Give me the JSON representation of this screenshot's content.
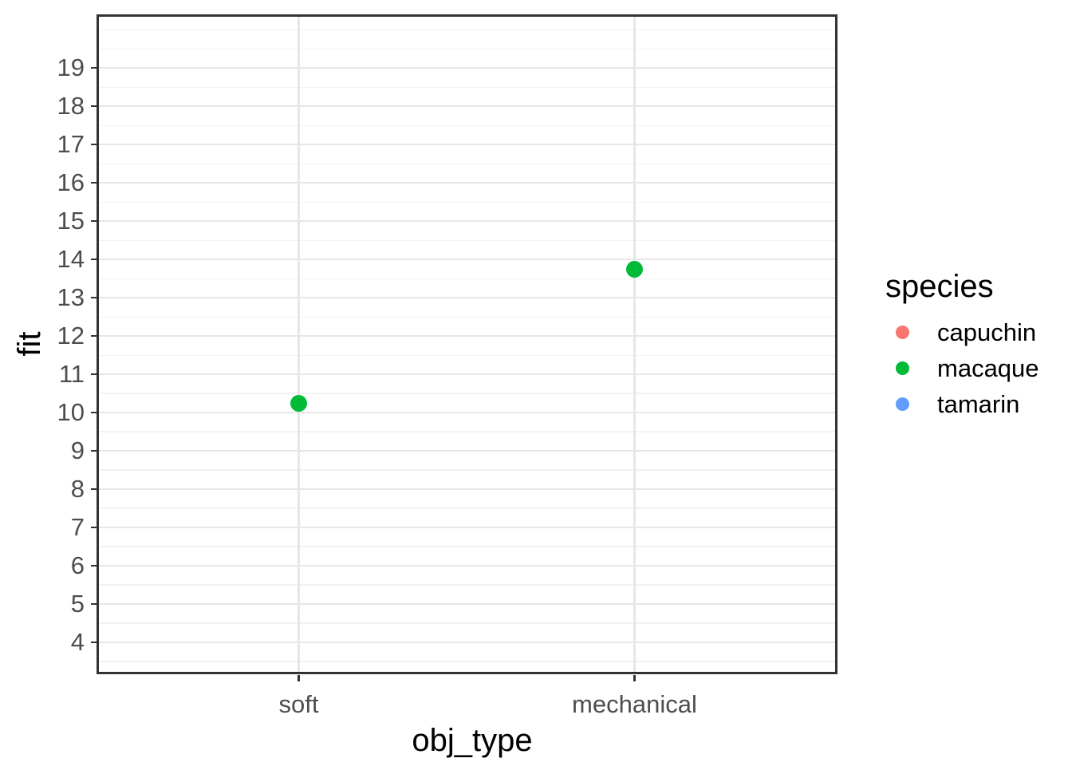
{
  "chart_data": {
    "type": "scatter",
    "title": "",
    "xlabel": "obj_type",
    "ylabel": "fit",
    "categories": [
      "soft",
      "mechanical"
    ],
    "y_ticks": [
      4,
      5,
      6,
      7,
      8,
      9,
      10,
      11,
      12,
      13,
      14,
      15,
      16,
      17,
      18,
      19
    ],
    "ylim": [
      3.21,
      20.38
    ],
    "grid": {
      "h_major": true,
      "h_minor": true,
      "v_major": true,
      "v_minor": false
    },
    "legend": {
      "title": "species",
      "position": "right"
    },
    "series": [
      {
        "name": "capuchin",
        "color": "#F8766D",
        "points": []
      },
      {
        "name": "macaque",
        "color": "#00BA38",
        "points": [
          {
            "x": "soft",
            "fit": 10.25
          },
          {
            "x": "mechanical",
            "fit": 13.75
          }
        ]
      },
      {
        "name": "tamarin",
        "color": "#619CFF",
        "points": []
      }
    ]
  },
  "colors": {
    "background": "#FFFFFF",
    "panel_border": "#333333",
    "tick_mark": "#333333",
    "tick_label": "#4D4D4D",
    "axis_title": "#000000",
    "grid_major": "#E7E7E7",
    "grid_minor": "#F2F2F2"
  }
}
